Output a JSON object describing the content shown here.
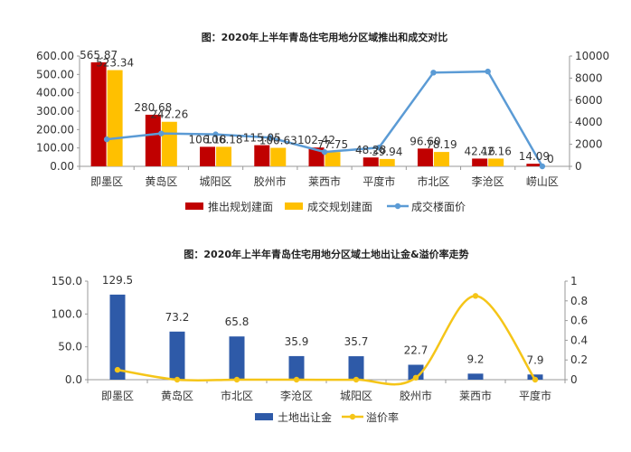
{
  "chart_data": [
    {
      "type": "bar",
      "title": "图：2020年上半年青岛住宅用地分区域推出和成交对比",
      "categories": [
        "即墨区",
        "黄岛区",
        "城阳区",
        "胶州市",
        "莱西市",
        "平度市",
        "市北区",
        "李沧区",
        "崂山区"
      ],
      "series": [
        {
          "name": "推出规划建面",
          "kind": "bar",
          "axis": "left",
          "color": "#c00000",
          "values": [
            565.87,
            280.68,
            106.18,
            115.05,
            102.42,
            48.28,
            96.6,
            42.16,
            14.09
          ],
          "labels": [
            "565.87",
            "280.68",
            "106.18",
            "115.05",
            "102.42",
            "48.28",
            "96.60",
            "42.16",
            "14.09"
          ]
        },
        {
          "name": "成交规划建面",
          "kind": "bar",
          "axis": "left",
          "color": "#ffc000",
          "values": [
            523.34,
            242.26,
            106.18,
            100.63,
            77.75,
            39.94,
            78.19,
            42.16,
            0
          ],
          "labels": [
            "523.34",
            "242.26",
            "106.18",
            "100.63",
            "77.75",
            "39.94",
            "78.19",
            "42.16",
            "0"
          ]
        },
        {
          "name": "成交楼面价",
          "kind": "line",
          "axis": "right",
          "color": "#5b9bd5",
          "values": [
            2450,
            2980,
            2900,
            2600,
            1300,
            1700,
            8500,
            8600,
            0
          ]
        }
      ],
      "ylim_left": [
        0,
        600
      ],
      "yticks_left": [
        "0.00",
        "100.00",
        "200.00",
        "300.00",
        "400.00",
        "500.00",
        "600.00"
      ],
      "ylim_right": [
        0,
        10000
      ],
      "yticks_right": [
        "0",
        "2000",
        "4000",
        "6000",
        "8000",
        "10000"
      ],
      "legend_position": "bottom"
    },
    {
      "type": "bar",
      "title": "图：2020年上半年青岛住宅用地分区域土地出让金&溢价率走势",
      "categories": [
        "即墨区",
        "黄岛区",
        "市北区",
        "李沧区",
        "城阳区",
        "胶州市",
        "莱西市",
        "平度市"
      ],
      "series": [
        {
          "name": "土地出让金",
          "kind": "bar",
          "axis": "left",
          "color": "#2e5aa8",
          "values": [
            129.5,
            73.2,
            65.8,
            35.9,
            35.7,
            22.7,
            9.2,
            7.9
          ],
          "labels": [
            "129.5",
            "73.2",
            "65.8",
            "35.9",
            "35.7",
            "22.7",
            "9.2",
            "7.9"
          ]
        },
        {
          "name": "溢价率",
          "kind": "line",
          "axis": "right",
          "color": "#f5c518",
          "values": [
            0.1,
            0.0,
            0.0,
            0.0,
            0.0,
            0.02,
            0.85,
            0.0
          ]
        }
      ],
      "ylim_left": [
        0,
        150
      ],
      "yticks_left": [
        "0.0",
        "50.0",
        "100.0",
        "150.0"
      ],
      "ylim_right": [
        0,
        1
      ],
      "yticks_right": [
        "0",
        "0.2",
        "0.4",
        "0.6",
        "0.8",
        "1"
      ],
      "legend_position": "bottom"
    }
  ]
}
